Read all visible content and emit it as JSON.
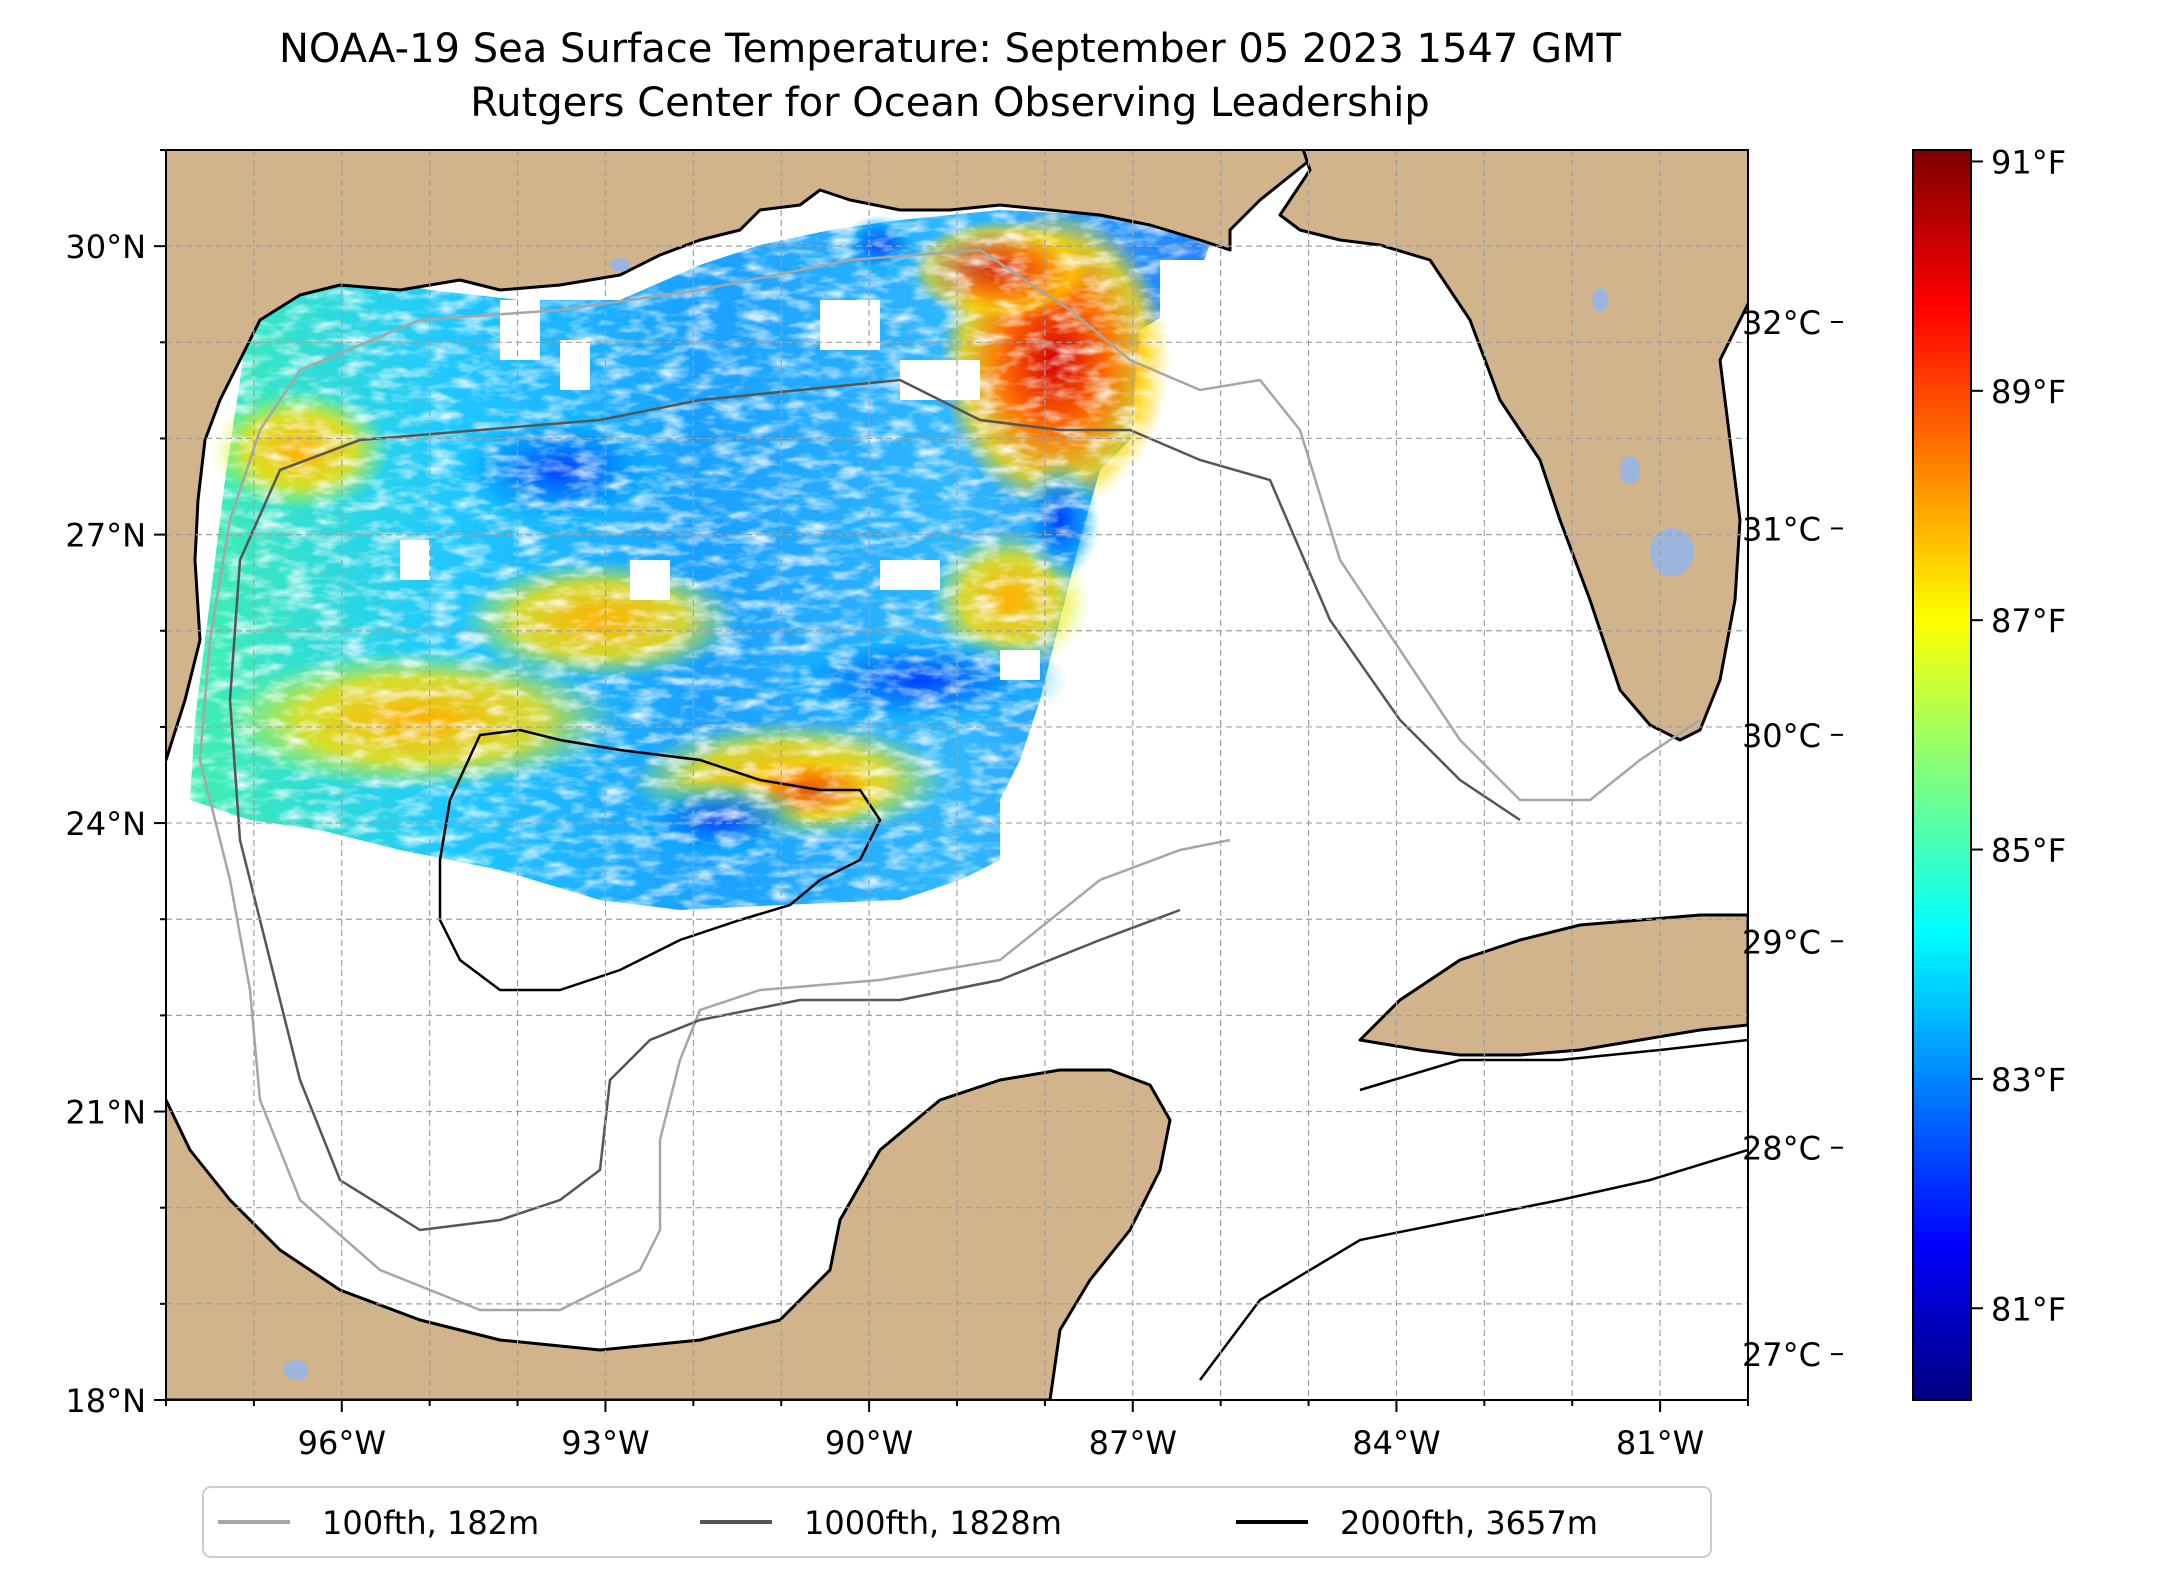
{
  "title": "NOAA-19 Sea Surface Temperature: September 05 2023 1547 GMT",
  "subtitle": "Rutgers Center for Ocean Observing Leadership",
  "map": {
    "lon_range": [
      -98.0,
      -80.0
    ],
    "lat_range": [
      18.0,
      31.0
    ],
    "lat_ticks": [
      {
        "value": 18,
        "label": "18°N"
      },
      {
        "value": 21,
        "label": "21°N"
      },
      {
        "value": 24,
        "label": "24°N"
      },
      {
        "value": 27,
        "label": "27°N"
      },
      {
        "value": 30,
        "label": "30°N"
      }
    ],
    "lon_ticks": [
      {
        "value": -96,
        "label": "96°W"
      },
      {
        "value": -93,
        "label": "93°W"
      },
      {
        "value": -90,
        "label": "90°W"
      },
      {
        "value": -87,
        "label": "87°W"
      },
      {
        "value": -84,
        "label": "84°W"
      },
      {
        "value": -81,
        "label": "81°W"
      }
    ],
    "gridlines": "dashed",
    "colors": {
      "land": "#d2b48c",
      "lakes": "#9bb5de",
      "ocean": "#ffffff",
      "coastline": "#000000"
    }
  },
  "colorbar": {
    "colormap": "jet",
    "range_f": [
      80.2,
      91.1
    ],
    "fahrenheit_ticks": [
      {
        "value": 81,
        "label": "81°F"
      },
      {
        "value": 83,
        "label": "83°F"
      },
      {
        "value": 85,
        "label": "85°F"
      },
      {
        "value": 87,
        "label": "87°F"
      },
      {
        "value": 89,
        "label": "89°F"
      },
      {
        "value": 91,
        "label": "91°F"
      }
    ],
    "celsius_ticks": [
      {
        "value": 27,
        "label": "27°C"
      },
      {
        "value": 28,
        "label": "28°C"
      },
      {
        "value": 29,
        "label": "29°C"
      },
      {
        "value": 30,
        "label": "30°C"
      },
      {
        "value": 31,
        "label": "31°C"
      },
      {
        "value": 32,
        "label": "32°C"
      }
    ]
  },
  "legend": {
    "items": [
      {
        "label": "100fth, 182m",
        "color": "#a6a6a6"
      },
      {
        "label": "1000fth, 1828m",
        "color": "#555555"
      },
      {
        "label": "2000fth, 3657m",
        "color": "#000000"
      }
    ]
  }
}
